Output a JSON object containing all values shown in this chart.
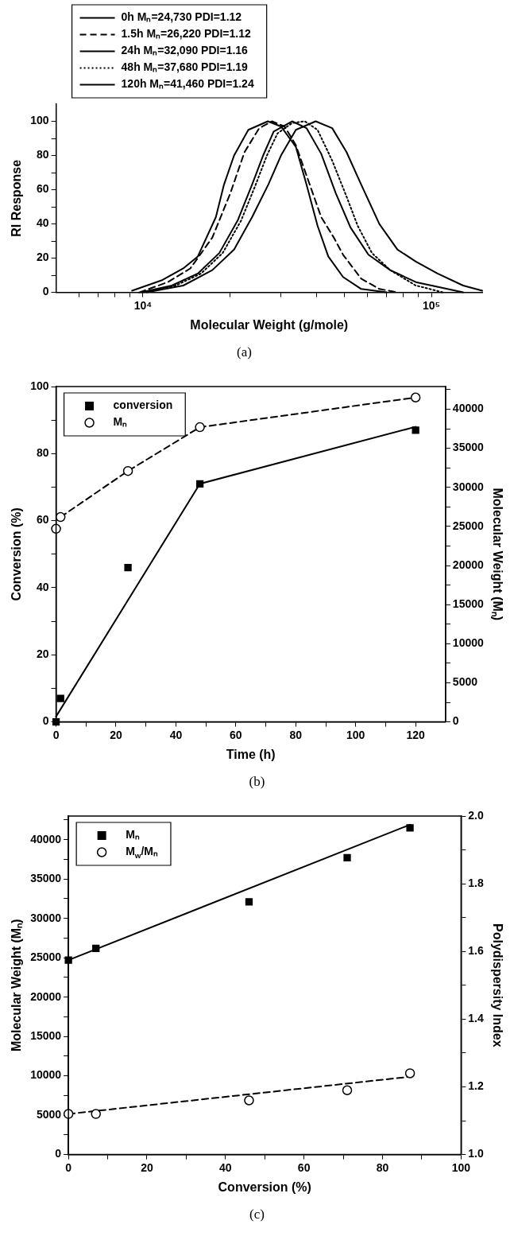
{
  "chart_data": [
    {
      "type": "line",
      "title": "(a)",
      "xlabel": "Molecular Weight (g/mole)",
      "ylabel": "RI Response",
      "log": "x",
      "legend": "top",
      "xlim": [
        5000,
        150000
      ],
      "xticks": [
        {
          "value": 6000,
          "label": null
        },
        {
          "value": 7000,
          "label": null
        },
        {
          "value": 8000,
          "label": null
        },
        {
          "value": 9000,
          "label": null
        },
        {
          "value": 10000,
          "label": "10⁴"
        },
        {
          "value": 20000,
          "label": null
        },
        {
          "value": 30000,
          "label": null
        },
        {
          "value": 40000,
          "label": null
        },
        {
          "value": 50000,
          "label": null
        },
        {
          "value": 60000,
          "label": null
        },
        {
          "value": 70000,
          "label": null
        },
        {
          "value": 80000,
          "label": null
        },
        {
          "value": 90000,
          "label": null
        },
        {
          "value": 100000,
          "label": "10⁵"
        }
      ],
      "ylim": [
        0,
        110
      ],
      "yticks": [
        0,
        {
          "value": 10,
          "label": null
        },
        20,
        {
          "value": 30,
          "label": null
        },
        40,
        {
          "value": 50,
          "label": null
        },
        60,
        {
          "value": 70,
          "label": null
        },
        80,
        {
          "value": 90,
          "label": null
        },
        100
      ],
      "series": [
        {
          "name": "0h Mₙ=24,730 PDI=1.12",
          "color": "#000000",
          "line_style": "solid",
          "x": [
            9170,
            11600,
            13800,
            15500,
            17900,
            19100,
            20700,
            23200,
            27100,
            30100,
            33900,
            36900,
            40300,
            43900,
            49400,
            57100,
            70000
          ],
          "values": [
            1,
            7,
            14,
            21,
            44,
            63,
            80,
            95,
            100,
            97,
            85,
            63,
            39,
            21,
            9,
            2,
            0
          ]
        },
        {
          "name": "1.5h Mₙ=26,220 PDI=1.12",
          "color": "#000000",
          "line_style": "dashed",
          "x": [
            9710,
            12200,
            14600,
            17400,
            20100,
            22500,
            25300,
            28000,
            31000,
            33900,
            37500,
            41500,
            45900,
            49400,
            57100,
            66000,
            76300
          ],
          "values": [
            0,
            6,
            14,
            32,
            58,
            82,
            96,
            100,
            97,
            86,
            65,
            44,
            32,
            22,
            8,
            2,
            0
          ]
        },
        {
          "name": "24h Mₙ=32,090 PDI=1.16",
          "color": "#000000",
          "line_style": "solid",
          "x": [
            9860,
            12600,
            15500,
            18400,
            21300,
            23900,
            26100,
            28400,
            32900,
            36900,
            41500,
            46600,
            52400,
            60500,
            72000,
            88300,
            128800
          ],
          "values": [
            0,
            4,
            11,
            23,
            42,
            63,
            80,
            94,
            100,
            96,
            81,
            58,
            38,
            22,
            13,
            6,
            0
          ]
        },
        {
          "name": "48h Mₙ=37,680 PDI=1.19",
          "color": "#000000",
          "line_style": "dotted",
          "x": [
            10000,
            13000,
            15900,
            18900,
            21900,
            24600,
            26900,
            29300,
            32900,
            36400,
            40300,
            45300,
            50800,
            55500,
            62200,
            72000,
            88300,
            109800
          ],
          "values": [
            0,
            4,
            11,
            23,
            42,
            63,
            80,
            93,
            99,
            100,
            95,
            77,
            56,
            39,
            23,
            13,
            4,
            0
          ]
        },
        {
          "name": "120h Mₙ=41,460 PDI=1.24",
          "color": "#000000",
          "line_style": "solid",
          "x": [
            10300,
            13800,
            17400,
            20700,
            23900,
            27200,
            30100,
            33900,
            39700,
            45300,
            50800,
            57100,
            66000,
            76300,
            88300,
            105000,
            128800,
            150000
          ],
          "values": [
            0,
            4,
            13,
            25,
            44,
            63,
            80,
            95,
            100,
            96,
            82,
            63,
            40,
            25,
            18,
            11,
            4,
            1
          ]
        }
      ]
    },
    {
      "type": "scatter",
      "title": "(b)",
      "xlabel": "Time (h)",
      "ylabel": "Conversion (%)",
      "y2label": "Molecular Weight (Mₙ)",
      "legend": "top left",
      "xlim": [
        0,
        130
      ],
      "xticks": [
        0,
        {
          "value": 10,
          "label": null
        },
        20,
        {
          "value": 30,
          "label": null
        },
        40,
        {
          "value": 50,
          "label": null
        },
        60,
        {
          "value": 70,
          "label": null
        },
        80,
        {
          "value": 90,
          "label": null
        },
        100,
        {
          "value": 110,
          "label": null
        },
        120
      ],
      "ylim": [
        0,
        100
      ],
      "yticks": [
        0,
        {
          "value": 10,
          "label": null
        },
        20,
        {
          "value": 30,
          "label": null
        },
        40,
        {
          "value": 50,
          "label": null
        },
        60,
        {
          "value": 70,
          "label": null
        },
        80,
        {
          "value": 90,
          "label": null
        },
        100
      ],
      "y2lim": [
        0,
        42900
      ],
      "y2ticks": [
        0,
        {
          "value": 2500,
          "label": null
        },
        5000,
        {
          "value": 7500,
          "label": null
        },
        10000,
        {
          "value": 12500,
          "label": null
        },
        15000,
        {
          "value": 17500,
          "label": null
        },
        20000,
        {
          "value": 22500,
          "label": null
        },
        25000,
        {
          "value": 27500,
          "label": null
        },
        30000,
        {
          "value": 32500,
          "label": null
        },
        35000,
        {
          "value": 37500,
          "label": null
        },
        40000,
        {
          "value": 42500,
          "label": null
        }
      ],
      "series": [
        {
          "name": "conversion",
          "color": "#000000",
          "marker": "square",
          "x": [
            0,
            1.5,
            24,
            48,
            120
          ],
          "values": [
            0,
            7,
            46,
            71,
            87
          ]
        },
        {
          "name": "Mₙ",
          "color": "#000000",
          "marker": "circle",
          "axis": "y2",
          "x": [
            0,
            1.5,
            24,
            48,
            120
          ],
          "values": [
            24700,
            26200,
            32100,
            37700,
            41500
          ]
        },
        {
          "type": "line",
          "color": "#000000",
          "line_style": "solid",
          "x": [
            0,
            48,
            120
          ],
          "values": [
            1.6,
            71,
            88
          ]
        },
        {
          "type": "line",
          "color": "#000000",
          "line_style": "dashed",
          "axis": "y2",
          "x": [
            1.5,
            24,
            48,
            120
          ],
          "values": [
            26200,
            32100,
            37700,
            41500
          ]
        }
      ]
    },
    {
      "type": "scatter",
      "title": "(c)",
      "xlabel": "Conversion (%)",
      "ylabel": "Molecular Weight (Mₙ)",
      "y2label": "Polydispersity Index",
      "legend": "top left",
      "xlim": [
        0,
        100
      ],
      "xticks": [
        0,
        {
          "value": 10,
          "label": null
        },
        20,
        {
          "value": 30,
          "label": null
        },
        40,
        {
          "value": 50,
          "label": null
        },
        60,
        {
          "value": 70,
          "label": null
        },
        80,
        {
          "value": 90,
          "label": null
        },
        100
      ],
      "ylim": [
        0,
        43000
      ],
      "yticks": [
        0,
        {
          "value": 2500,
          "label": null
        },
        5000,
        {
          "value": 7500,
          "label": null
        },
        10000,
        {
          "value": 12500,
          "label": null
        },
        15000,
        {
          "value": 17500,
          "label": null
        },
        20000,
        {
          "value": 22500,
          "label": null
        },
        25000,
        {
          "value": 27500,
          "label": null
        },
        30000,
        {
          "value": 32500,
          "label": null
        },
        35000,
        {
          "value": 37500,
          "label": null
        },
        40000,
        {
          "value": 42500,
          "label": null
        }
      ],
      "y2lim": [
        1.0,
        2.0
      ],
      "y2ticks": [
        {
          "value": 1.0,
          "label": "1.0"
        },
        {
          "value": 1.1,
          "label": null
        },
        1.2,
        {
          "value": 1.3,
          "label": null
        },
        1.4,
        {
          "value": 1.5,
          "label": null
        },
        1.6,
        {
          "value": 1.7,
          "label": null
        },
        1.8,
        {
          "value": 1.9,
          "label": null
        },
        {
          "value": 2.0,
          "label": "2.0"
        }
      ],
      "series": [
        {
          "name": "Mₙ",
          "color": "#000000",
          "marker": "square",
          "x": [
            0,
            7,
            46,
            71,
            87
          ],
          "values": [
            24700,
            26200,
            32100,
            37700,
            41500
          ]
        },
        {
          "name": "M$_{w}$/Mₙ",
          "color": "#000000",
          "marker": "circle",
          "axis": "y2",
          "x": [
            0,
            7,
            46,
            71,
            87
          ],
          "values": [
            1.12,
            1.12,
            1.16,
            1.19,
            1.24
          ]
        },
        {
          "type": "line",
          "color": "#000000",
          "line_style": "solid",
          "x": [
            0,
            87
          ],
          "values": [
            24700,
            41900
          ]
        },
        {
          "type": "line",
          "color": "#000000",
          "line_style": "dashed",
          "axis": "y2",
          "x": [
            0,
            87
          ],
          "values": [
            1.12,
            1.23
          ]
        }
      ]
    }
  ]
}
